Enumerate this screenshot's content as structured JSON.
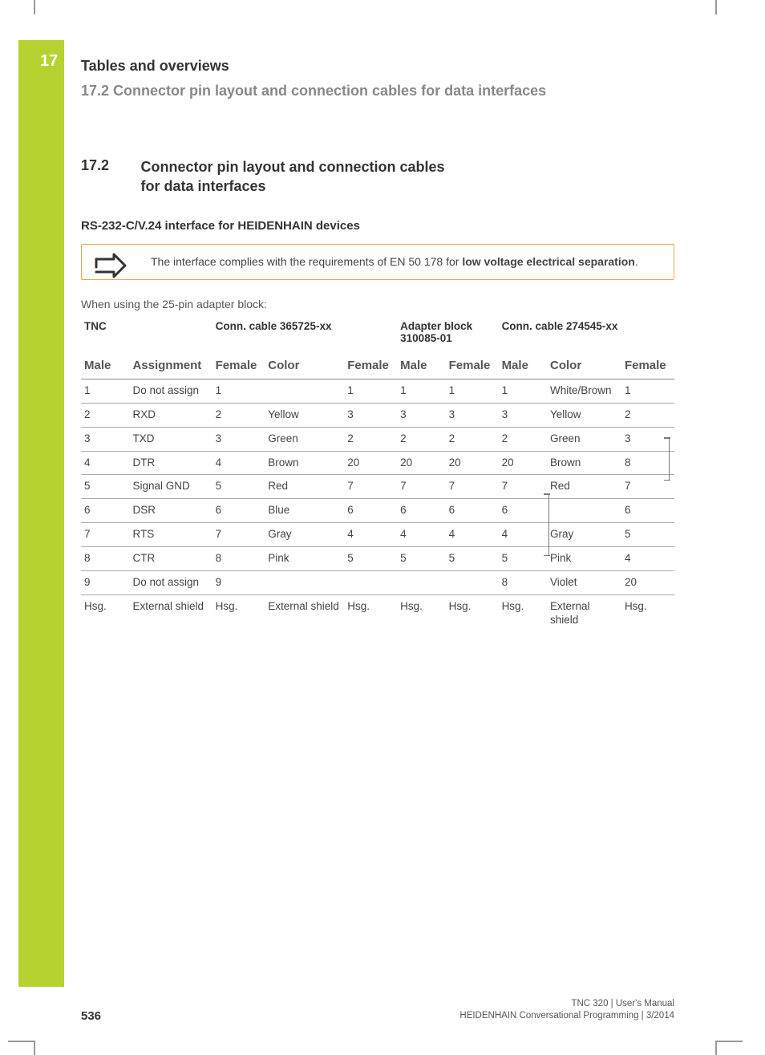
{
  "chapter_number": "17",
  "header_title": "Tables and overviews",
  "header_subtitle": "17.2   Connector pin layout and connection cables for data interfaces",
  "section_number": "17.2",
  "section_title": "Connector pin layout and connection cables for data interfaces",
  "subheading": "RS-232-C/V.24 interface for HEIDENHAIN devices",
  "note_text_pre": "The interface complies with the requirements of EN 50 178 for ",
  "note_text_bold": "low voltage electrical separation",
  "note_text_post": ".",
  "intro_text": "When using the 25-pin adapter block:",
  "table": {
    "group_headers": [
      "TNC",
      "Conn. cable 365725-xx",
      "Adapter block 310085-01",
      "Conn. cable 274545-xx"
    ],
    "sub_headers": [
      "Male",
      "Assignment",
      "Female",
      "Color",
      "Female",
      "Male",
      "Female",
      "Male",
      "Color",
      "Female"
    ],
    "rows": [
      [
        "1",
        "Do not assign",
        "1",
        "",
        "1",
        "1",
        "1",
        "1",
        "White/Brown",
        "1"
      ],
      [
        "2",
        "RXD",
        "2",
        "Yellow",
        "3",
        "3",
        "3",
        "3",
        "Yellow",
        "2"
      ],
      [
        "3",
        "TXD",
        "3",
        "Green",
        "2",
        "2",
        "2",
        "2",
        "Green",
        "3"
      ],
      [
        "4",
        "DTR",
        "4",
        "Brown",
        "20",
        "20",
        "20",
        "20",
        "Brown",
        "8"
      ],
      [
        "5",
        "Signal GND",
        "5",
        "Red",
        "7",
        "7",
        "7",
        "7",
        "Red",
        "7"
      ],
      [
        "6",
        "DSR",
        "6",
        "Blue",
        "6",
        "6",
        "6",
        "6",
        "",
        "6"
      ],
      [
        "7",
        "RTS",
        "7",
        "Gray",
        "4",
        "4",
        "4",
        "4",
        "Gray",
        "5"
      ],
      [
        "8",
        "CTR",
        "8",
        "Pink",
        "5",
        "5",
        "5",
        "5",
        "Pink",
        "4"
      ],
      [
        "9",
        "Do not assign",
        "9",
        "",
        "",
        "",
        "",
        "8",
        "Violet",
        "20"
      ],
      [
        "Hsg.",
        "External shield",
        "Hsg.",
        "External shield",
        "Hsg.",
        "Hsg.",
        "Hsg.",
        "Hsg.",
        "External shield",
        "Hsg."
      ]
    ],
    "col_widths": [
      "55",
      "90",
      "55",
      "90",
      "60",
      "55",
      "60",
      "55",
      "80",
      "60"
    ]
  },
  "page_number": "536",
  "footer_line1": "TNC 320 | User's Manual",
  "footer_line2": "HEIDENHAIN Conversational Programming | 3/2014",
  "colors": {
    "accent": "#b6d231",
    "note_border": "#e8a94a"
  }
}
